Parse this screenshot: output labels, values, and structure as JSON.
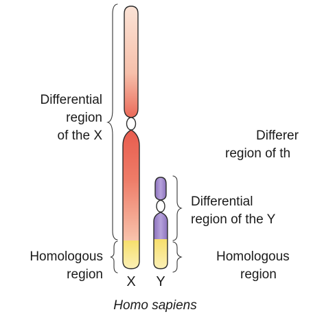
{
  "diagram": {
    "left_labels": {
      "differential_x": [
        "Differential",
        "region",
        "of the X"
      ],
      "homologous": [
        "Homologous",
        "region"
      ]
    },
    "middle_labels": {
      "differential_y": [
        "Differential",
        "region of the Y"
      ]
    },
    "chromosome_labels": {
      "x": "X",
      "y": "Y"
    },
    "species": "Homo sapiens",
    "right_labels": {
      "differential": [
        "Differer",
        "region of th"
      ],
      "homologous": [
        "Homologous",
        "region"
      ]
    },
    "colors": {
      "x_pale": "#f7c9b5",
      "x_deep": "#ea6a59",
      "y_purple": "#9d85c8",
      "yellow": "#f8e47a",
      "outline": "#2a2a2a"
    }
  }
}
